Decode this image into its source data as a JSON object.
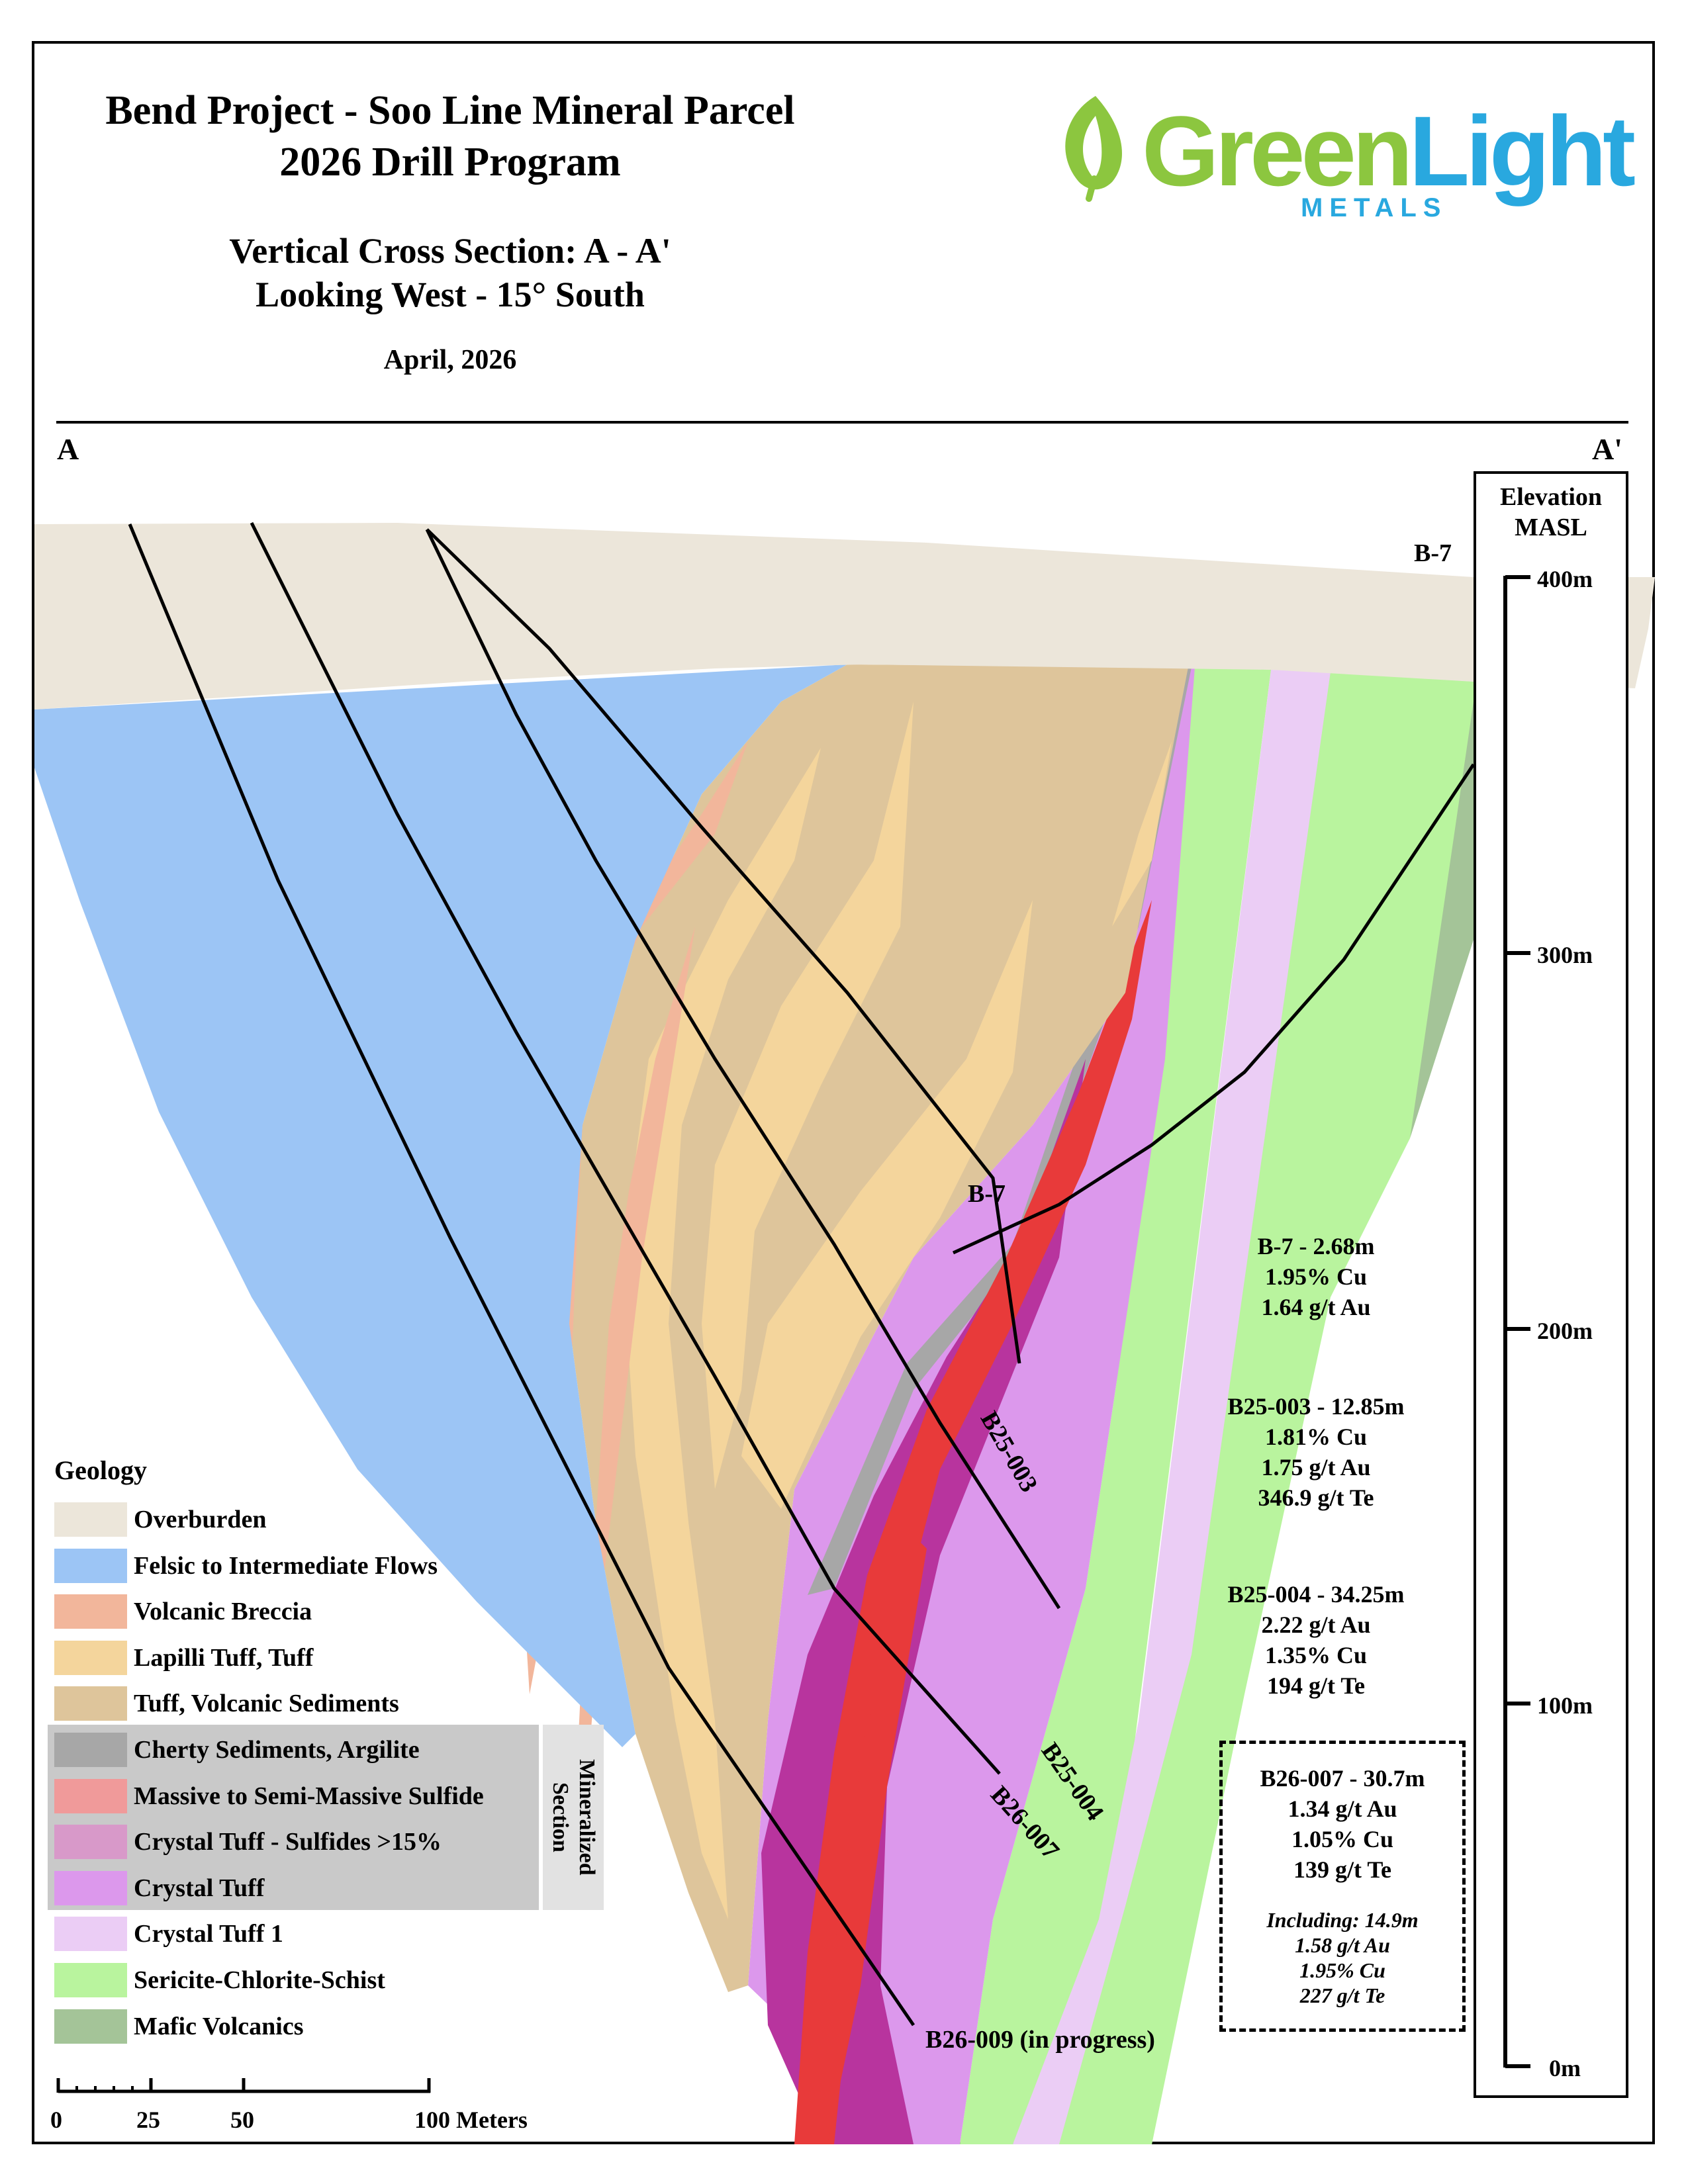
{
  "header": {
    "title_line1": "Bend Project - Soo Line Mineral Parcel",
    "title_line2": "2026 Drill Program",
    "subtitle_line1": "Vertical Cross Section: A - A'",
    "subtitle_line2": "Looking West - 15° South",
    "date": "April, 2026"
  },
  "logo": {
    "word_part1": "Green",
    "word_part2": "Light",
    "sub": "METALS",
    "green_color": "#8cc63f",
    "blue_color": "#29a8df"
  },
  "section_labels": {
    "start": "A",
    "end": "A'"
  },
  "elevation": {
    "title_line1": "Elevation",
    "title_line2": "MASL",
    "ticks": [
      "400m",
      "300m",
      "200m",
      "100m",
      "0m"
    ]
  },
  "drillholes": {
    "b7_top_label": "B-7",
    "b7_label": "B-7",
    "b25_003": "B25-003",
    "b25_004": "B25-004",
    "b26_007": "B26-007",
    "b26_009": "B26-009 (in progress)"
  },
  "results": {
    "b7": [
      "B-7 - 2.68m",
      "1.95% Cu",
      "1.64 g/t Au"
    ],
    "b25_003": [
      "B25-003 - 12.85m",
      "1.81% Cu",
      "1.75 g/t Au",
      "346.9 g/t Te"
    ],
    "b25_004": [
      "B25-004 - 34.25m",
      "2.22 g/t Au",
      "1.35% Cu",
      "194 g/t Te"
    ],
    "b26_007": [
      "B26-007 - 30.7m",
      "1.34 g/t Au",
      "1.05% Cu",
      "139 g/t Te"
    ],
    "b26_007_including": [
      "Including: 14.9m",
      "1.58 g/t Au",
      "1.95% Cu",
      "227 g/t Te"
    ]
  },
  "legend": {
    "title": "Geology",
    "mineralized_label": "Mineralized Section",
    "items": [
      {
        "label": "Overburden",
        "color": "#ece6da"
      },
      {
        "label": "Felsic to Intermediate Flows",
        "color": "#9cc5f5"
      },
      {
        "label": "Volcanic Breccia",
        "color": "#f2b69b"
      },
      {
        "label": "Lapilli Tuff, Tuff",
        "color": "#f4d59c"
      },
      {
        "label": "Tuff, Volcanic Sediments",
        "color": "#dec59b"
      },
      {
        "label": "Cherty Sediments, Argilite",
        "color": "#a7a7a7"
      },
      {
        "label": "Massive to Semi-Massive Sulfide",
        "color": "#f09a9a"
      },
      {
        "label": "Crystal Tuff - Sulfides >15%",
        "color": "#d899c9"
      },
      {
        "label": "Crystal Tuff",
        "color": "#dc98ec"
      },
      {
        "label": "Crystal Tuff 1",
        "color": "#ebcdf5"
      },
      {
        "label": "Sericite-Chlorite-Schist",
        "color": "#b9f49e"
      },
      {
        "label": "Mafic Volcanics",
        "color": "#a4c498"
      }
    ]
  },
  "scale": {
    "ticks": [
      "0",
      "25",
      "50"
    ],
    "end_label": "100 Meters"
  }
}
